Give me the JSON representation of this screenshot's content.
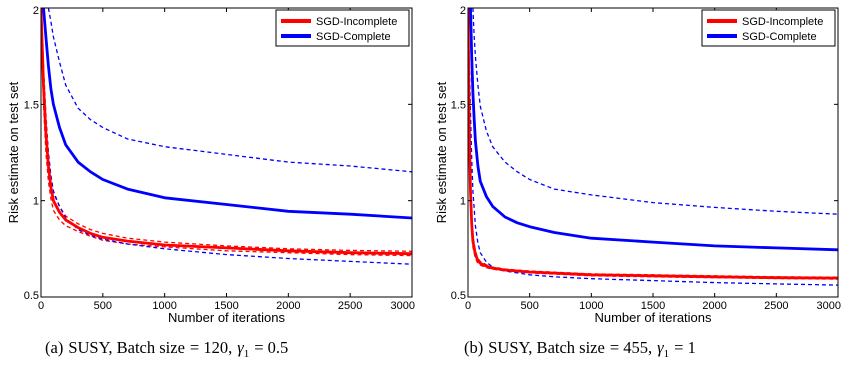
{
  "figure": {
    "panels": [
      {
        "caption": {
          "label": "(a)",
          "text": "SUSY, Batch size",
          "eq": "= 120,",
          "gamma_sym": "γ",
          "gamma_sub": "1",
          "gamma_eq": "= 0.5"
        }
      },
      {
        "caption": {
          "label": "(b)",
          "text": "SUSY, Batch size",
          "eq": "= 455,",
          "gamma_sym": "γ",
          "gamma_sub": "1",
          "gamma_eq": "= 1"
        }
      }
    ]
  },
  "colors": {
    "incomplete": "#ff0000",
    "complete": "#0000ff",
    "axis": "#000000"
  },
  "chart_data": [
    {
      "type": "line",
      "title": "",
      "xlabel": "Number of iterations",
      "ylabel": "Risk estimate on test set",
      "xlim": [
        0,
        3000
      ],
      "ylim": [
        0.5,
        2
      ],
      "xticks": [
        0,
        500,
        1000,
        1500,
        2000,
        2500,
        3000
      ],
      "yticks": [
        0.5,
        1,
        1.5,
        2
      ],
      "ytick_labels": [
        "0.5",
        "1",
        "1.5",
        "2"
      ],
      "grid": false,
      "legend_position": "top-right",
      "series": [
        {
          "name": "SGD-Incomplete",
          "color": "#ff0000",
          "style": "solid",
          "width": "thick",
          "x": [
            0,
            20,
            40,
            60,
            80,
            100,
            150,
            200,
            300,
            400,
            500,
            700,
            1000,
            1500,
            2000,
            2500,
            3000
          ],
          "y": [
            2.0,
            1.6,
            1.35,
            1.18,
            1.07,
            1.0,
            0.94,
            0.9,
            0.86,
            0.83,
            0.81,
            0.79,
            0.77,
            0.755,
            0.74,
            0.73,
            0.725
          ]
        },
        {
          "name": "",
          "color": "#ff0000",
          "style": "dashed",
          "role": "upper band",
          "x": [
            0,
            20,
            40,
            60,
            80,
            100,
            150,
            200,
            300,
            400,
            500,
            700,
            1000,
            1500,
            2000,
            2500,
            3000
          ],
          "y": [
            2.0,
            1.7,
            1.45,
            1.25,
            1.12,
            1.04,
            0.97,
            0.92,
            0.88,
            0.85,
            0.83,
            0.805,
            0.785,
            0.765,
            0.75,
            0.742,
            0.737
          ]
        },
        {
          "name": "",
          "color": "#ff0000",
          "style": "dashed",
          "role": "lower band",
          "x": [
            0,
            20,
            40,
            60,
            80,
            100,
            150,
            200,
            300,
            400,
            500,
            700,
            1000,
            1500,
            2000,
            2500,
            3000
          ],
          "y": [
            2.0,
            1.5,
            1.25,
            1.1,
            1.01,
            0.95,
            0.9,
            0.87,
            0.84,
            0.815,
            0.795,
            0.775,
            0.76,
            0.74,
            0.73,
            0.72,
            0.715
          ]
        },
        {
          "name": "SGD-Complete",
          "color": "#0000ff",
          "style": "solid",
          "width": "thick",
          "x": [
            20,
            40,
            60,
            80,
            100,
            150,
            200,
            300,
            400,
            500,
            700,
            1000,
            1500,
            2000,
            2500,
            3000
          ],
          "y": [
            2.0,
            1.85,
            1.7,
            1.58,
            1.5,
            1.38,
            1.29,
            1.2,
            1.15,
            1.11,
            1.06,
            1.015,
            0.98,
            0.945,
            0.93,
            0.91
          ]
        },
        {
          "name": "",
          "color": "#0000ff",
          "style": "dashed",
          "role": "upper band",
          "x": [
            60,
            80,
            100,
            150,
            200,
            300,
            400,
            500,
            700,
            1000,
            1500,
            2000,
            2500,
            3000
          ],
          "y": [
            2.0,
            1.93,
            1.85,
            1.72,
            1.6,
            1.48,
            1.42,
            1.38,
            1.32,
            1.28,
            1.24,
            1.2,
            1.18,
            1.15
          ]
        },
        {
          "name": "",
          "color": "#0000ff",
          "style": "dashed",
          "role": "lower band",
          "x": [
            0,
            20,
            40,
            60,
            80,
            100,
            150,
            200,
            300,
            400,
            500,
            700,
            1000,
            1500,
            2000,
            2500,
            3000
          ],
          "y": [
            2.0,
            1.6,
            1.4,
            1.25,
            1.13,
            1.05,
            0.97,
            0.91,
            0.85,
            0.82,
            0.8,
            0.775,
            0.75,
            0.72,
            0.7,
            0.685,
            0.67
          ]
        }
      ]
    },
    {
      "type": "line",
      "title": "",
      "xlabel": "Number of iterations",
      "ylabel": "Risk estimate on test set",
      "xlim": [
        0,
        3000
      ],
      "ylim": [
        0.5,
        2
      ],
      "xticks": [
        0,
        500,
        1000,
        1500,
        2000,
        2500,
        3000
      ],
      "yticks": [
        0.5,
        1,
        1.5,
        2
      ],
      "ytick_labels": [
        "0.5",
        "1",
        "1.5",
        "2"
      ],
      "grid": false,
      "legend_position": "top-right",
      "series": [
        {
          "name": "SGD-Incomplete",
          "color": "#ff0000",
          "style": "solid",
          "width": "thick",
          "x": [
            0,
            10,
            20,
            30,
            40,
            60,
            80,
            100,
            150,
            200,
            300,
            500,
            1000,
            1500,
            2000,
            2500,
            3000
          ],
          "y": [
            2.0,
            1.4,
            1.05,
            0.88,
            0.79,
            0.72,
            0.69,
            0.675,
            0.66,
            0.65,
            0.64,
            0.63,
            0.615,
            0.61,
            0.605,
            0.6,
            0.598
          ]
        },
        {
          "name": "",
          "color": "#ff0000",
          "style": "dashed",
          "role": "upper band",
          "x": [
            0,
            10,
            20,
            30,
            40,
            60,
            80,
            100,
            150,
            200,
            300,
            500,
            1000,
            1500,
            2000,
            2500,
            3000
          ],
          "y": [
            2.0,
            1.5,
            1.12,
            0.92,
            0.82,
            0.74,
            0.7,
            0.685,
            0.667,
            0.655,
            0.645,
            0.635,
            0.62,
            0.615,
            0.61,
            0.605,
            0.603
          ]
        },
        {
          "name": "",
          "color": "#ff0000",
          "style": "dashed",
          "role": "lower band",
          "x": [
            0,
            10,
            20,
            30,
            40,
            60,
            80,
            100,
            150,
            200,
            300,
            500,
            1000,
            1500,
            2000,
            2500,
            3000
          ],
          "y": [
            2.0,
            1.3,
            0.98,
            0.84,
            0.76,
            0.7,
            0.675,
            0.665,
            0.652,
            0.645,
            0.635,
            0.625,
            0.61,
            0.605,
            0.6,
            0.596,
            0.593
          ]
        },
        {
          "name": "SGD-Complete",
          "color": "#0000ff",
          "style": "solid",
          "width": "thick",
          "x": [
            20,
            30,
            40,
            50,
            60,
            80,
            100,
            150,
            200,
            300,
            400,
            500,
            700,
            1000,
            1500,
            2000,
            2500,
            3000
          ],
          "y": [
            2.0,
            1.75,
            1.56,
            1.42,
            1.31,
            1.18,
            1.1,
            1.02,
            0.97,
            0.915,
            0.885,
            0.865,
            0.835,
            0.805,
            0.785,
            0.765,
            0.755,
            0.745
          ]
        },
        {
          "name": "",
          "color": "#0000ff",
          "style": "dashed",
          "role": "upper band",
          "x": [
            40,
            50,
            60,
            80,
            100,
            150,
            200,
            300,
            400,
            500,
            700,
            1000,
            1500,
            2000,
            2500,
            3000
          ],
          "y": [
            2.0,
            1.85,
            1.75,
            1.6,
            1.49,
            1.36,
            1.28,
            1.2,
            1.15,
            1.11,
            1.06,
            1.03,
            0.99,
            0.965,
            0.945,
            0.93
          ]
        },
        {
          "name": "",
          "color": "#0000ff",
          "style": "dashed",
          "role": "lower band",
          "x": [
            0,
            10,
            20,
            30,
            40,
            60,
            80,
            100,
            150,
            200,
            300,
            400,
            500,
            700,
            1000,
            1500,
            2000,
            2500,
            3000
          ],
          "y": [
            2.0,
            1.75,
            1.45,
            1.22,
            1.05,
            0.87,
            0.78,
            0.73,
            0.68,
            0.655,
            0.635,
            0.625,
            0.615,
            0.605,
            0.595,
            0.585,
            0.575,
            0.568,
            0.562
          ]
        }
      ]
    }
  ]
}
